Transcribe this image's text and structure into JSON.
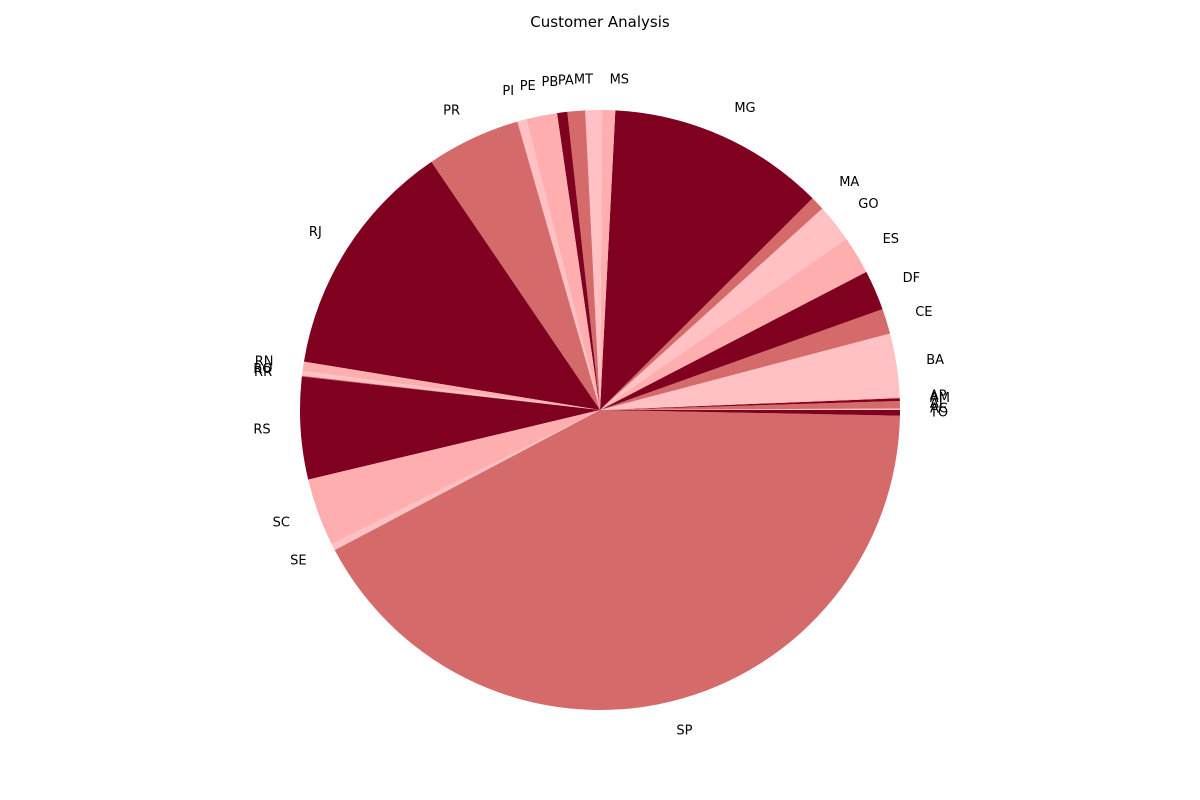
{
  "chart_data": {
    "type": "pie",
    "title": "Customer Analysis",
    "start_angle_deg": 0,
    "direction": "counterclockwise",
    "palette": [
      "#FFC1C3",
      "#D46A6A",
      "#800020",
      "#FFAEB0"
    ],
    "slices": [
      {
        "label": "AC",
        "value": 0.08
      },
      {
        "label": "AL",
        "value": 0.4
      },
      {
        "label": "AM",
        "value": 0.15
      },
      {
        "label": "AP",
        "value": 0.07
      },
      {
        "label": "BA",
        "value": 3.4
      },
      {
        "label": "CE",
        "value": 1.35
      },
      {
        "label": "DF",
        "value": 2.15
      },
      {
        "label": "ES",
        "value": 2.05
      },
      {
        "label": "GO",
        "value": 2.05
      },
      {
        "label": "MA",
        "value": 0.75
      },
      {
        "label": "MG",
        "value": 11.7
      },
      {
        "label": "MS",
        "value": 0.7
      },
      {
        "label": "MT",
        "value": 0.9
      },
      {
        "label": "PA",
        "value": 0.95
      },
      {
        "label": "PB",
        "value": 0.55
      },
      {
        "label": "PE",
        "value": 1.65
      },
      {
        "label": "PI",
        "value": 0.5
      },
      {
        "label": "PR",
        "value": 5.05
      },
      {
        "label": "RJ",
        "value": 12.9
      },
      {
        "label": "RN",
        "value": 0.5
      },
      {
        "label": "RO",
        "value": 0.25
      },
      {
        "label": "RR",
        "value": 0.05
      },
      {
        "label": "RS",
        "value": 5.5
      },
      {
        "label": "SC",
        "value": 3.65
      },
      {
        "label": "SE",
        "value": 0.35
      },
      {
        "label": "SP",
        "value": 41.9
      },
      {
        "label": "TO",
        "value": 0.3
      }
    ]
  }
}
